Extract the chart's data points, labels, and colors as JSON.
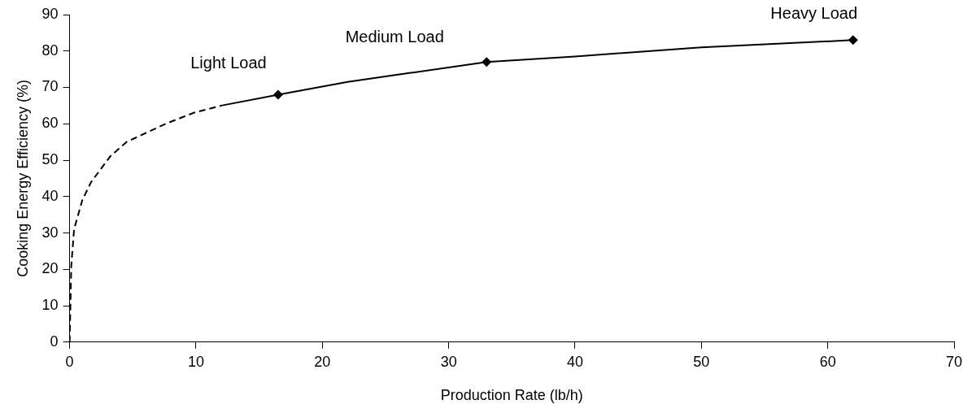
{
  "chart_data": {
    "type": "line",
    "xlabel": "Production Rate (lb/h)",
    "ylabel": "Cooking Energy Efficiency (%)",
    "xlim": [
      0,
      70
    ],
    "xticks": [
      0,
      10,
      20,
      30,
      40,
      50,
      60,
      70
    ],
    "ylim": [
      0,
      90
    ],
    "yticks": [
      0,
      10,
      20,
      30,
      40,
      50,
      60,
      70,
      80,
      90
    ],
    "grid": false,
    "legend": false,
    "series": [
      {
        "color": "#000000",
        "line_style": "dashed",
        "marker": "none",
        "x": [
          0,
          0.13,
          0.35,
          1.0,
          1.7,
          3.2,
          4.5,
          7.6,
          9.8,
          12
        ],
        "values": [
          0,
          21,
          31,
          39,
          44,
          51,
          55,
          60,
          63,
          65
        ]
      },
      {
        "color": "#000000",
        "line_style": "solid",
        "marker": "none",
        "x": [
          12,
          16.5,
          22,
          27,
          33,
          40,
          50,
          62
        ],
        "values": [
          65,
          68,
          71.5,
          74,
          77,
          78.5,
          81,
          83
        ]
      },
      {
        "type": "scatter",
        "color": "#000000",
        "marker": "diamond",
        "x": [
          16.5,
          33,
          62
        ],
        "values": [
          68,
          77,
          83
        ]
      }
    ],
    "annotations": [
      {
        "text": "Light Load",
        "x": 16.5,
        "y": 68
      },
      {
        "text": "Medium Load",
        "x": 33,
        "y": 77
      },
      {
        "text": "Heavy Load",
        "x": 62,
        "y": 83
      }
    ]
  }
}
